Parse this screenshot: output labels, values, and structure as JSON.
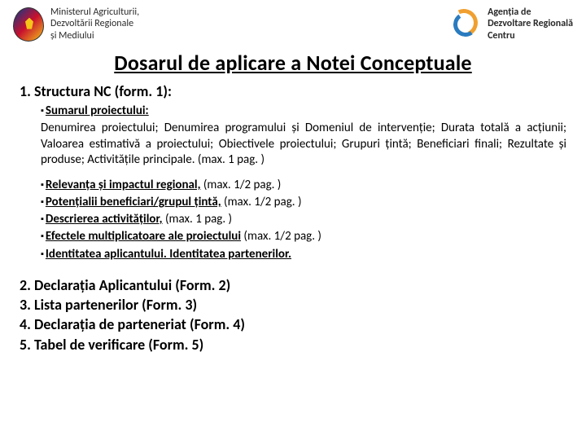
{
  "header": {
    "ministry_line1": "Ministerul Agriculturii,",
    "ministry_line2": "Dezvoltării Regionale",
    "ministry_line3": "și Mediului",
    "agency_line1": "Agenția de",
    "agency_line2": "Dezvoltare Regională",
    "agency_line3": "Centru"
  },
  "title": "Dosarul de aplicare a Notei Conceptuale",
  "section1": {
    "heading": "1. Structura NC (form. 1):",
    "summary_label": "Sumarul proiectului:",
    "summary_body": "Denumirea proiectului; Denumirea programului și Domeniul de intervenție; Durata totală a acțiunii; Valoarea estimativă a proiectului; Obiectivele proiectului; Grupuri țintă; Beneficiari finali; Rezultate și produse; Activitățile principale. (max. 1 pag. )",
    "bullets": [
      {
        "bold": "Relevanța și impactul regional,",
        "rest": " (max. 1/2 pag. )"
      },
      {
        "bold": "Potențialii beneficiari/grupul țintă,",
        "rest": " (max. 1/2 pag. )"
      },
      {
        "bold": "Descrierea activităților,",
        "rest": " (max. 1 pag. )"
      },
      {
        "bold": "Efectele multiplicatoare ale proiectului",
        "rest": " (max. 1/2 pag. )"
      },
      {
        "bold": "Identitatea aplicantului. Identitatea partenerilor.",
        "rest": ""
      }
    ]
  },
  "bottom": [
    "2. Declarația Aplicantului (Form. 2)",
    "3. Lista partenerilor (Form. 3)",
    "4. Declarația de parteneriat (Form. 4)",
    "5. Tabel  de verificare (Form. 5)"
  ],
  "colors": {
    "text": "#000000",
    "background": "#ffffff"
  }
}
